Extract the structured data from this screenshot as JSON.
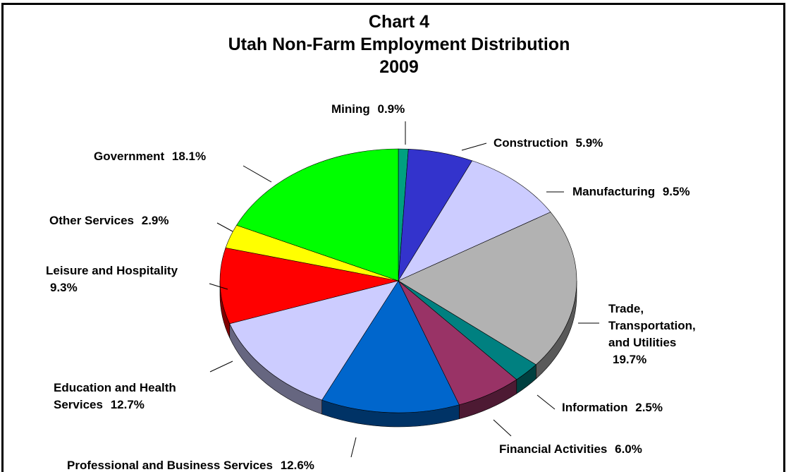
{
  "chart_data": {
    "type": "pie",
    "chart_label": "Chart 4",
    "title": "Utah Non-Farm Employment Distribution",
    "subtitle": "2009",
    "categories": [
      "Mining",
      "Construction",
      "Manufacturing",
      "Trade, Transportation, and Utilities",
      "Information",
      "Financial Activities",
      "Professional and Business Services",
      "Education and Health Services",
      "Leisure and Hospitality",
      "Other Services",
      "Government"
    ],
    "values": [
      0.9,
      5.9,
      9.5,
      19.7,
      2.5,
      6.0,
      12.6,
      12.7,
      9.3,
      2.9,
      18.1
    ],
    "value_labels": [
      "0.9%",
      "5.9%",
      "9.5%",
      "19.7%",
      "2.5%",
      "6.0%",
      "12.6%",
      "12.7%",
      "9.3%",
      "2.9%",
      "18.1%"
    ],
    "colors": [
      "#00a080",
      "#3333cc",
      "#ccccff",
      "#b2b2b2",
      "#008080",
      "#993366",
      "#0066cc",
      "#ccccff",
      "#ff0000",
      "#ffff00",
      "#00ff00"
    ]
  }
}
